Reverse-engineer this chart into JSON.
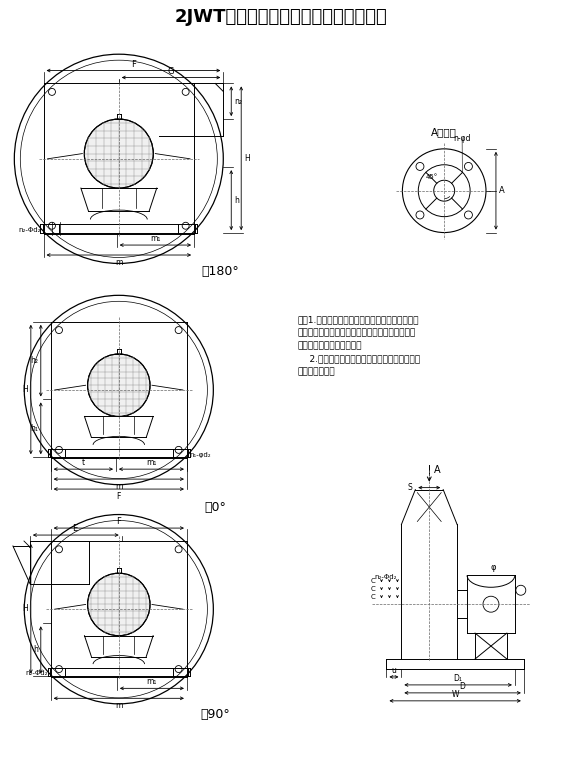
{
  "title": "2JWT型系列双级离心式风机外形结构图",
  "title_fontsize": 13,
  "bg_color": "#ffffff",
  "line_color": "#000000",
  "note_line1": "注：1.该外形尺寸为常规型，我公司另有机壳采用",
  "note_line2": "铸铁、铸铝两种外形，造型美观，运转平稳。如有",
  "note_line3": "需要请另行索取外形尺寸。",
  "note_line4": "    2.本产品可根据用户需要而改变安装结构形式",
  "note_line5": "及安装外形尺寸",
  "label_180": "右180°",
  "label_0": "右0°",
  "label_90": "右90°",
  "label_a_zoom": "A向放大"
}
